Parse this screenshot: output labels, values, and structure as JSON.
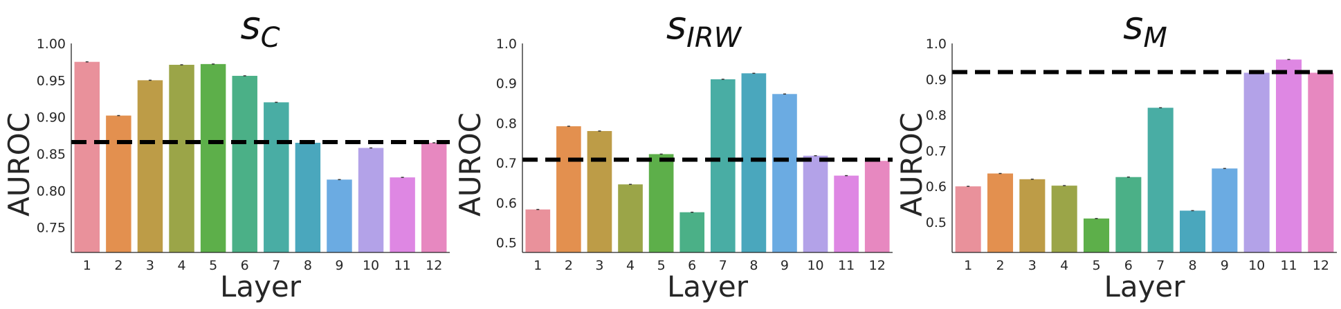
{
  "chart_data": [
    {
      "type": "bar",
      "title": "s",
      "title_sub": "C",
      "xlabel": "Layer",
      "ylabel": "AUROC",
      "categories": [
        "1",
        "2",
        "3",
        "4",
        "5",
        "6",
        "7",
        "8",
        "9",
        "10",
        "11",
        "12"
      ],
      "values": [
        0.975,
        0.902,
        0.95,
        0.971,
        0.972,
        0.956,
        0.92,
        0.865,
        0.815,
        0.858,
        0.818,
        0.865
      ],
      "baseline": 0.866,
      "ylim": [
        0.716,
        1.0
      ],
      "yticks": [
        "0.75",
        "0.80",
        "0.85",
        "0.90",
        "0.95",
        "1.00"
      ],
      "grid": false
    },
    {
      "type": "bar",
      "title": "s",
      "title_sub": "IRW",
      "xlabel": "Layer",
      "ylabel": "AUROC",
      "categories": [
        "1",
        "2",
        "3",
        "4",
        "5",
        "6",
        "7",
        "8",
        "9",
        "10",
        "11",
        "12"
      ],
      "values": [
        0.583,
        0.792,
        0.78,
        0.646,
        0.722,
        0.576,
        0.91,
        0.925,
        0.873,
        0.718,
        0.668,
        0.705
      ],
      "baseline": 0.708,
      "ylim": [
        0.475,
        1.0
      ],
      "yticks": [
        "0.5",
        "0.6",
        "0.7",
        "0.8",
        "0.9",
        "1.0"
      ],
      "grid": false
    },
    {
      "type": "bar",
      "title": "s",
      "title_sub": "M",
      "xlabel": "Layer",
      "ylabel": "AUROC",
      "categories": [
        "1",
        "2",
        "3",
        "4",
        "5",
        "6",
        "7",
        "8",
        "9",
        "10",
        "11",
        "12"
      ],
      "values": [
        0.6,
        0.636,
        0.62,
        0.602,
        0.51,
        0.626,
        0.82,
        0.532,
        0.65,
        0.918,
        0.955,
        0.918
      ],
      "baseline": 0.92,
      "ylim": [
        0.415,
        1.0
      ],
      "yticks": [
        "0.5",
        "0.6",
        "0.7",
        "0.8",
        "0.9",
        "1.0"
      ],
      "grid": false
    }
  ],
  "colors": {
    "bars": [
      "#e9919b",
      "#e3904f",
      "#bd9c47",
      "#9ba548",
      "#5daf4a",
      "#4bb087",
      "#49ada4",
      "#4aa7bd",
      "#6babe2",
      "#b3a2e8",
      "#de87e3",
      "#e788c0"
    ],
    "baseline": "#000000",
    "text": "#262626",
    "axis": "#262626"
  }
}
